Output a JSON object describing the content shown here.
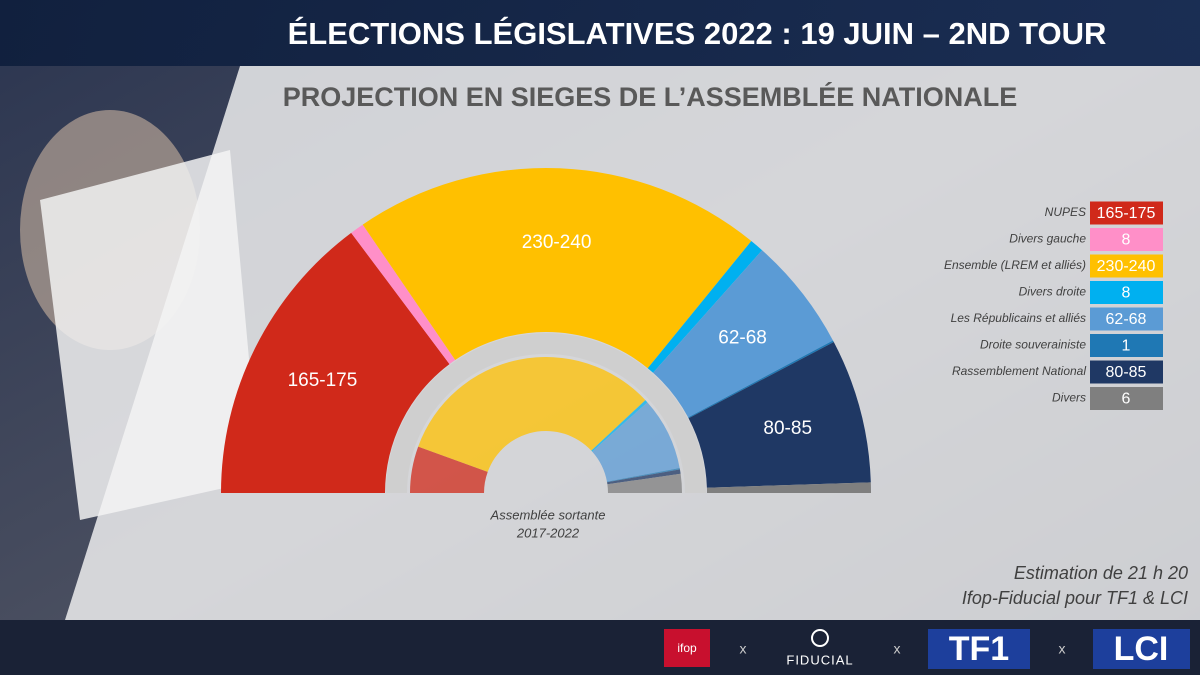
{
  "header": {
    "title": "ÉLECTIONS LÉGISLATIVES 2022 : 19 JUIN – 2ND TOUR",
    "subtitle": "PROJECTION EN SIEGES DE L’ASSEMBLÉE NATIONALE"
  },
  "chart_data": {
    "type": "hemicycle",
    "categories": [
      "NUPES",
      "Divers gauche",
      "Ensemble (LREM et alliés)",
      "Divers droite",
      "Les Républicains et alliés",
      "Droite souverainiste",
      "Rassemblement National",
      "Divers"
    ],
    "colors": [
      "#d0291a",
      "#ff8fc8",
      "#ffc000",
      "#00b0f0",
      "#5b9bd5",
      "#1f78b4",
      "#1f3864",
      "#7f7f7f"
    ],
    "low": [
      165,
      8,
      230,
      8,
      62,
      1,
      80,
      6
    ],
    "high": [
      175,
      8,
      240,
      8,
      68,
      1,
      85,
      6
    ],
    "value_labels": [
      "165-175",
      "8",
      "230-240",
      "8",
      "62-68",
      "1",
      "80-85",
      "6"
    ],
    "previous": [
      64,
      0,
      375,
      4,
      100,
      2,
      6,
      26
    ],
    "inner_title": "Assemblée sortante",
    "inner_period": "2017-2022"
  },
  "note": [
    "Estimation de 21 h 20",
    "Ifop-Fiducial pour TF1 & LCI"
  ],
  "footer": {
    "logos": [
      "ifop",
      "FIDUCIAL",
      "TF1",
      "LCI"
    ],
    "separator": "x"
  }
}
